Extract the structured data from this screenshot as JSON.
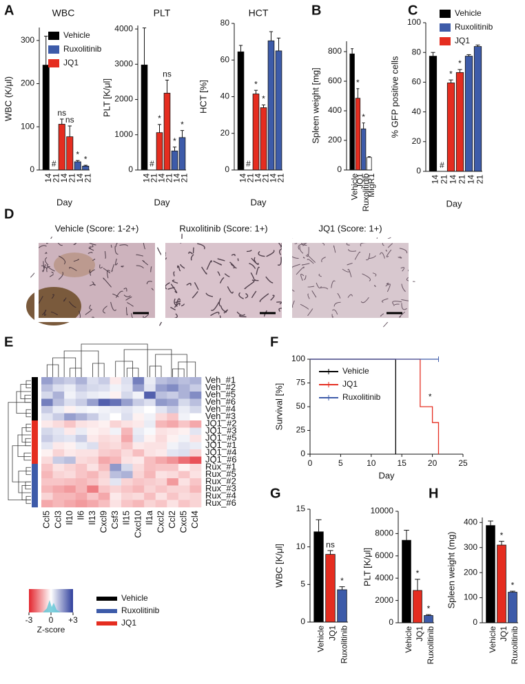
{
  "chart_data": [
    {
      "type": "bar",
      "panel": "A",
      "title": "WBC",
      "ylabel": "WBC (K/μl)",
      "xlabel": "Day",
      "categories": [
        "14",
        "21",
        "14",
        "21",
        "14",
        "21"
      ],
      "values": [
        243,
        null,
        106,
        77,
        19,
        9
      ],
      "errors": [
        67,
        null,
        12,
        25,
        3,
        2
      ],
      "colors": [
        "#000000",
        "#000000",
        "#e52d20",
        "#e52d20",
        "#3d5ba9",
        "#3d5ba9"
      ],
      "annotations": [
        null,
        "#",
        "ns",
        "ns",
        "*",
        "*"
      ],
      "ylim": [
        0,
        330
      ],
      "yticks": [
        0,
        100,
        200,
        300
      ],
      "legend": [
        {
          "name": "Vehicle",
          "color": "#000000"
        },
        {
          "name": "Ruxolitinib",
          "color": "#3d5ba9"
        },
        {
          "name": "JQ1",
          "color": "#e52d20"
        }
      ]
    },
    {
      "type": "bar",
      "title": "PLT",
      "ylabel": "PLT [K/μl]",
      "xlabel": "Day",
      "categories": [
        "14",
        "21",
        "14",
        "21",
        "14",
        "21"
      ],
      "values": [
        2980,
        null,
        1060,
        2180,
        540,
        920
      ],
      "errors": [
        1050,
        null,
        230,
        370,
        110,
        200
      ],
      "colors": [
        "#000000",
        "#000000",
        "#e52d20",
        "#e52d20",
        "#3d5ba9",
        "#3d5ba9"
      ],
      "annotations": [
        null,
        "#",
        "*",
        "ns",
        "*",
        "*"
      ],
      "ylim": [
        0,
        4100
      ],
      "yticks": [
        0,
        1000,
        2000,
        3000,
        4000
      ]
    },
    {
      "type": "bar",
      "title": "HCT",
      "ylabel": "HCT [%]",
      "xlabel": "Day",
      "categories": [
        "14",
        "21",
        "14",
        "21",
        "14",
        "21"
      ],
      "values": [
        64.5,
        null,
        41.5,
        34,
        70.5,
        65
      ],
      "errors": [
        3.5,
        null,
        2,
        1.5,
        5,
        7
      ],
      "colors": [
        "#000000",
        "#000000",
        "#e52d20",
        "#e52d20",
        "#3d5ba9",
        "#3d5ba9"
      ],
      "annotations": [
        null,
        "#",
        "*",
        "*",
        null,
        null
      ],
      "ylim": [
        0,
        80
      ],
      "yticks": [
        0,
        20,
        40,
        60,
        80
      ]
    },
    {
      "type": "bar",
      "panel": "B",
      "ylabel": "Spleen weight [mg]",
      "categories": [
        "Vehicle",
        "JQ1",
        "Ruxolitinib",
        "MigR1"
      ],
      "values": [
        785,
        485,
        278,
        85
      ],
      "errors": [
        35,
        65,
        40,
        5
      ],
      "colors": [
        "#000000",
        "#e52d20",
        "#3d5ba9",
        "#ffffff"
      ],
      "annotations": [
        null,
        "*",
        "*",
        null
      ],
      "ylim": [
        0,
        870
      ],
      "yticks": [
        0,
        200,
        400,
        600,
        800
      ]
    },
    {
      "type": "bar",
      "panel": "C",
      "ylabel": "% GFP positive cells",
      "xlabel": "Day",
      "categories": [
        "14",
        "21",
        "14",
        "21",
        "14",
        "21"
      ],
      "values": [
        77.5,
        null,
        59.5,
        66.5,
        77.5,
        84
      ],
      "errors": [
        2.5,
        null,
        2,
        2,
        1,
        1
      ],
      "colors": [
        "#000000",
        "#000000",
        "#e52d20",
        "#e52d20",
        "#3d5ba9",
        "#3d5ba9"
      ],
      "annotations": [
        null,
        "#",
        "*",
        "*",
        null,
        null
      ],
      "ylim": [
        0,
        100
      ],
      "yticks": [
        0,
        20,
        40,
        60,
        80,
        100
      ],
      "legend": [
        {
          "name": "Vehicle",
          "color": "#000000"
        },
        {
          "name": "Ruxolitinib",
          "color": "#3d5ba9"
        },
        {
          "name": "JQ1",
          "color": "#e52d20"
        }
      ]
    },
    {
      "type": "heatmap",
      "panel": "E",
      "columns": [
        "Ccl5",
        "Ccl3",
        "Il10",
        "Il6",
        "Il13",
        "Cxcl9",
        "Csf3",
        "Il15",
        "Cxcl10",
        "Il1a",
        "Cxcl2",
        "Ccl2",
        "Cxcl5",
        "Ccl4"
      ],
      "rows": [
        "Veh_#1",
        "Veh_#2",
        "Veh_#5",
        "Veh_#6",
        "Veh_#4",
        "Veh_#3",
        "JQ1_#2",
        "JQ1_#3",
        "JQ1_#5",
        "JQ1_#1",
        "JQ1_#4",
        "JQ1_#6",
        "Rux_#1",
        "Rux_#5",
        "Rux_#2",
        "Rux_#3",
        "Rux_#4",
        "Rux_#6"
      ],
      "row_colors": [
        "#000000",
        "#000000",
        "#000000",
        "#000000",
        "#000000",
        "#000000",
        "#e52d20",
        "#e52d20",
        "#e52d20",
        "#e52d20",
        "#e52d20",
        "#e52d20",
        "#3d5ba9",
        "#3d5ba9",
        "#3d5ba9",
        "#3d5ba9",
        "#3d5ba9",
        "#3d5ba9"
      ],
      "values": [
        [
          1.5,
          1.0,
          0.8,
          1.2,
          0.5,
          0.8,
          -0.3,
          0.5,
          2.0,
          0.3,
          1.0,
          1.2,
          1.0,
          1.2
        ],
        [
          1.0,
          0.5,
          0.3,
          0.8,
          0.6,
          0.5,
          0.2,
          0.4,
          1.5,
          0.4,
          1.5,
          1.8,
          1.2,
          0.8
        ],
        [
          0.6,
          1.2,
          0.2,
          0.5,
          0.3,
          0.2,
          -0.2,
          0.6,
          0.2,
          2.5,
          1.0,
          0.8,
          1.2,
          1.8
        ],
        [
          2.0,
          1.0,
          0.5,
          0.8,
          1.5,
          2.5,
          2.2,
          1.5,
          0.8,
          0.5,
          1.6,
          1.4,
          0.6,
          1.0
        ],
        [
          0.8,
          0.3,
          -0.2,
          0.2,
          0.1,
          0.2,
          0.3,
          0.4,
          0.2,
          0.0,
          0.4,
          0.8,
          0.3,
          0.6
        ],
        [
          0.4,
          0.8,
          1.5,
          1.2,
          0.8,
          0.3,
          0.0,
          0.5,
          -0.2,
          0.2,
          -0.5,
          -0.8,
          0.2,
          0.0
        ],
        [
          -0.3,
          -0.5,
          -0.8,
          -0.4,
          -0.3,
          -0.2,
          -0.6,
          -0.4,
          -0.3,
          0.3,
          -1.0,
          -1.2,
          -0.8,
          -1.2
        ],
        [
          0.6,
          0.4,
          -0.3,
          0.3,
          -0.2,
          -0.3,
          0.2,
          -1.0,
          0.3,
          0.1,
          -0.4,
          -0.3,
          -0.2,
          0.4
        ],
        [
          0.8,
          0.5,
          0.4,
          0.8,
          -0.3,
          -0.5,
          -0.4,
          -1.2,
          0.4,
          -0.2,
          -0.5,
          -0.2,
          0.2,
          -0.4
        ],
        [
          0.4,
          -0.3,
          -0.2,
          0.3,
          0.5,
          -0.6,
          -0.5,
          -0.8,
          -0.3,
          -0.4,
          -0.4,
          0.2,
          0.4,
          0.3
        ],
        [
          -0.2,
          -0.6,
          -0.3,
          -0.4,
          -0.4,
          -0.7,
          -0.8,
          -0.5,
          -0.9,
          -0.4,
          -0.3,
          0.4,
          0.5,
          -0.6
        ],
        [
          -0.5,
          0.8,
          1.0,
          -0.5,
          -0.6,
          -1.2,
          -1.0,
          -0.4,
          -0.3,
          -0.9,
          -1.2,
          -1.5,
          -2.0,
          -2.4
        ],
        [
          -0.8,
          -0.4,
          -0.6,
          -0.8,
          -0.4,
          -0.9,
          1.6,
          0.6,
          -0.5,
          -0.9,
          -0.8,
          -0.8,
          -0.2,
          -0.5
        ],
        [
          -1.0,
          -0.6,
          -0.5,
          -0.8,
          -1.0,
          -0.6,
          1.0,
          1.2,
          -0.6,
          -1.0,
          -0.4,
          -0.5,
          -0.8,
          -0.4
        ],
        [
          -0.8,
          -0.8,
          -0.9,
          -1.0,
          -0.8,
          -0.5,
          0.4,
          -0.6,
          -0.8,
          -0.7,
          -0.6,
          -1.4,
          -0.4,
          -0.8
        ],
        [
          -1.0,
          -1.2,
          -1.4,
          -1.0,
          -1.8,
          -0.8,
          -0.6,
          -0.8,
          -1.0,
          -0.6,
          -0.8,
          -0.6,
          -0.6,
          -1.0
        ],
        [
          -0.6,
          -1.0,
          -1.0,
          -1.2,
          -0.8,
          -1.2,
          -0.3,
          -0.6,
          -0.5,
          -0.9,
          -0.4,
          -0.8,
          -0.5,
          -0.6
        ],
        [
          -1.2,
          -1.0,
          -1.2,
          -1.4,
          -1.2,
          -0.9,
          -0.4,
          -0.8,
          -1.0,
          -0.6,
          -0.8,
          -0.4,
          -0.8,
          -0.6
        ]
      ],
      "low_color": "#e3262e",
      "high_color": "#2f3f9c",
      "colorbar": {
        "label": "Z-score",
        "lim": [
          -3,
          3
        ],
        "ticks": [
          -3,
          0,
          {
            "value": 3,
            "label": "+3"
          }
        ]
      },
      "legend": [
        {
          "name": "Vehicle",
          "color": "#000000"
        },
        {
          "name": "Ruxolitinib",
          "color": "#3d5ba9"
        },
        {
          "name": "JQ1",
          "color": "#e52d20"
        }
      ]
    },
    {
      "type": "step",
      "panel": "F",
      "xlabel": "Day",
      "ylabel": "Survival [%]",
      "xlim": [
        0,
        25
      ],
      "xticks": [
        0,
        5,
        10,
        15,
        20,
        25
      ],
      "ylim": [
        0,
        100
      ],
      "yticks": [
        0,
        25,
        50,
        75,
        100
      ],
      "annotation": "*",
      "series": [
        {
          "name": "Vehicle",
          "color": "#000000",
          "x": [
            0,
            14,
            14
          ],
          "values": [
            100,
            100,
            0
          ]
        },
        {
          "name": "JQ1",
          "color": "#e52d20",
          "x": [
            0,
            18,
            18,
            20,
            20,
            21,
            21
          ],
          "values": [
            100,
            100,
            50,
            50,
            33.3,
            33.3,
            0
          ]
        },
        {
          "name": "Ruxolitinib",
          "color": "#3d5ba9",
          "x": [
            0,
            21
          ],
          "values": [
            100,
            100
          ]
        }
      ]
    },
    {
      "type": "bar",
      "panel": "G",
      "ylabel": "WBC [K/μl]",
      "categories": [
        "Vehicle",
        "JQ1",
        "Ruxolitinib"
      ],
      "values": [
        12,
        9,
        4.3
      ],
      "errors": [
        1.6,
        0.5,
        0.4
      ],
      "colors": [
        "#000000",
        "#e52d20",
        "#3d5ba9"
      ],
      "annotations": [
        null,
        "ns",
        "*"
      ],
      "ylim": [
        0,
        15
      ],
      "yticks": [
        0,
        5,
        10,
        15
      ]
    },
    {
      "type": "bar",
      "ylabel": "PLT [K/μl]",
      "categories": [
        "Vehicle",
        "JQ1",
        "Ruxolitinib"
      ],
      "values": [
        7400,
        2900,
        650
      ],
      "errors": [
        900,
        1000,
        80
      ],
      "colors": [
        "#000000",
        "#e52d20",
        "#3d5ba9"
      ],
      "annotations": [
        null,
        "*",
        "*"
      ],
      "ylim": [
        0,
        10000
      ],
      "yticks": [
        0,
        2000,
        4000,
        6000,
        8000,
        10000
      ]
    },
    {
      "type": "bar",
      "panel": "H",
      "ylabel": "Spleen weight (mg)",
      "categories": [
        "Vehicle",
        "JQ1",
        "Ruxolitinib"
      ],
      "values": [
        388,
        310,
        122
      ],
      "errors": [
        18,
        15,
        4
      ],
      "colors": [
        "#000000",
        "#e52d20",
        "#3d5ba9"
      ],
      "annotations": [
        null,
        "*",
        "*"
      ],
      "ylim": [
        0,
        420
      ],
      "yticks": [
        0,
        100,
        200,
        300,
        400
      ]
    }
  ],
  "images": {
    "panel": "D",
    "titles": [
      "Vehicle (Score: 1-2+)",
      "Ruxolitinib (Score: 1+)",
      "JQ1 (Score: 1+)"
    ]
  }
}
